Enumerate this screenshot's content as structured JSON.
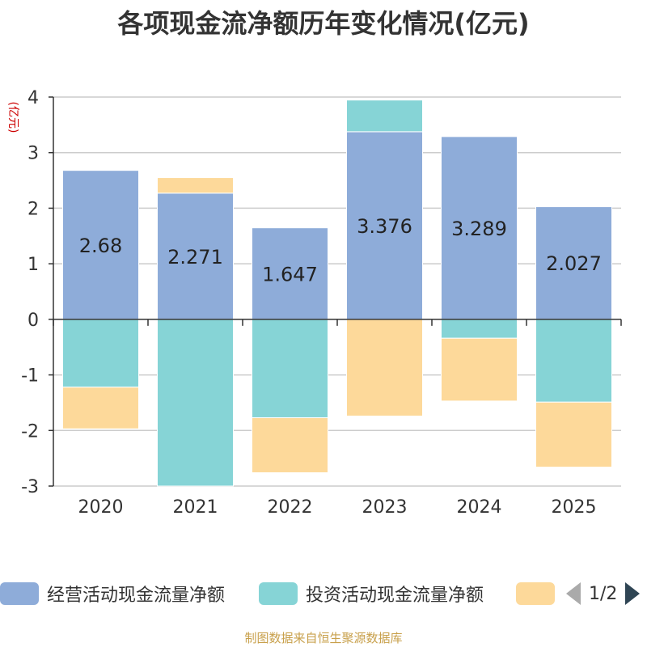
{
  "title": "各项现金流净额历年变化情况(亿元)",
  "source_note": "制图数据来自恒生聚源数据库",
  "legend": {
    "items": [
      {
        "label": "经营活动现金流量净额",
        "color": "#8eacd9"
      },
      {
        "label": "投资活动现金流量净额",
        "color": "#86d4d6"
      },
      {
        "label": "",
        "color": "#fdd99a"
      }
    ],
    "page_text": "1/2"
  },
  "chart_data": {
    "type": "bar",
    "stacked": true,
    "title": "各项现金流净额历年变化情况(亿元)",
    "ylabel": "(亿元)",
    "ylim": [
      -3,
      4
    ],
    "yticks": [
      -3,
      -2,
      -1,
      0,
      1,
      2,
      3,
      4
    ],
    "grid": true,
    "legend_position": "bottom",
    "categories": [
      "2020",
      "2021",
      "2022",
      "2023",
      "2024",
      "2025"
    ],
    "series": [
      {
        "name": "经营活动现金流量净额",
        "color": "#8eacd9",
        "values": [
          2.68,
          2.271,
          1.647,
          3.376,
          3.289,
          2.027
        ],
        "labels": [
          "2.68",
          "2.271",
          "1.647",
          "3.376",
          "3.289",
          "2.027"
        ]
      },
      {
        "name": "投资活动现金流量净额",
        "color": "#86d4d6",
        "values": [
          -1.22,
          -3.0,
          -1.77,
          0.57,
          -0.34,
          -1.49
        ]
      },
      {
        "name": "",
        "color": "#fdd99a",
        "values": [
          -0.75,
          0.28,
          -0.99,
          -1.74,
          -1.13,
          -1.17
        ]
      }
    ]
  }
}
